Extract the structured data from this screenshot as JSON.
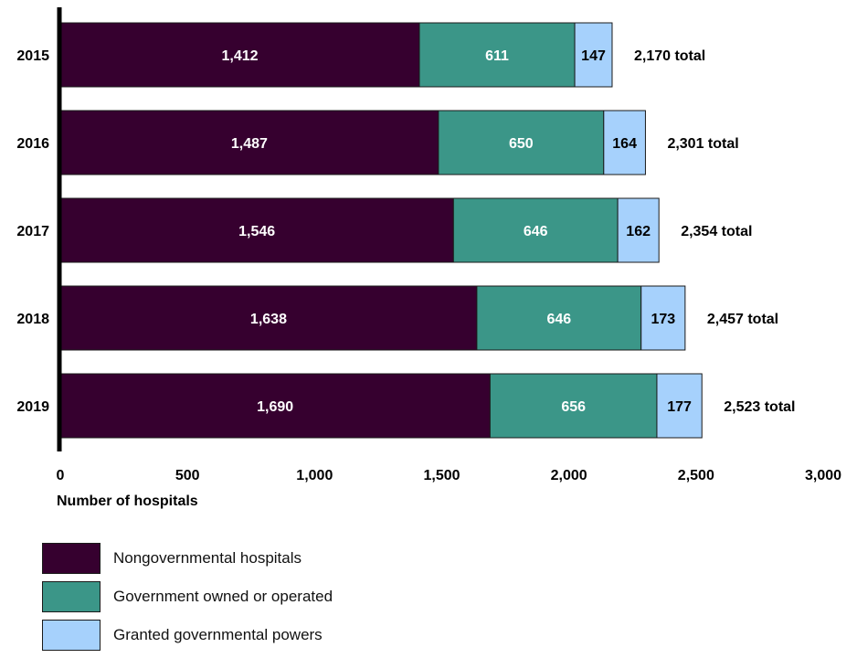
{
  "colors": {
    "nongovernmental": "#36002f",
    "government": "#3b9688",
    "granted": "#a6d1fc",
    "axis": "#000000",
    "text": "#111111"
  },
  "legend": {
    "items": [
      {
        "label": "Nongovernmental hospitals",
        "color": "#36002f"
      },
      {
        "label": "Government owned or operated",
        "color": "#3b9688"
      },
      {
        "label": "Granted governmental powers",
        "color": "#a6d1fc"
      }
    ]
  },
  "chart_data": {
    "type": "bar",
    "orientation": "horizontal",
    "stacked": true,
    "categories": [
      "2015",
      "2016",
      "2017",
      "2018",
      "2019"
    ],
    "series": [
      {
        "name": "Nongovernmental hospitals",
        "values": [
          1412,
          1487,
          1546,
          1638,
          1690
        ],
        "labels": [
          "1,412",
          "1,487",
          "1,546",
          "1,638",
          "1,690"
        ]
      },
      {
        "name": "Government owned or operated",
        "values": [
          611,
          650,
          646,
          646,
          656
        ],
        "labels": [
          "611",
          "650",
          "646",
          "646",
          "656"
        ]
      },
      {
        "name": "Granted governmental powers",
        "values": [
          147,
          164,
          162,
          173,
          177
        ],
        "labels": [
          "147",
          "164",
          "162",
          "173",
          "177"
        ]
      }
    ],
    "totals": [
      "2,170 total",
      "2,301 total",
      "2,354 total",
      "2,457 total",
      "2,523 total"
    ],
    "xlabel": "Number of hospitals",
    "ylabel": "",
    "xlim": [
      0,
      3000
    ],
    "xticks": [
      0,
      500,
      1000,
      1500,
      2000,
      2500,
      3000
    ],
    "xtick_labels": [
      "0",
      "500",
      "1,000",
      "1,500",
      "2,000",
      "2,500",
      "3,000"
    ],
    "grid": false,
    "legend_position": "bottom-left"
  }
}
